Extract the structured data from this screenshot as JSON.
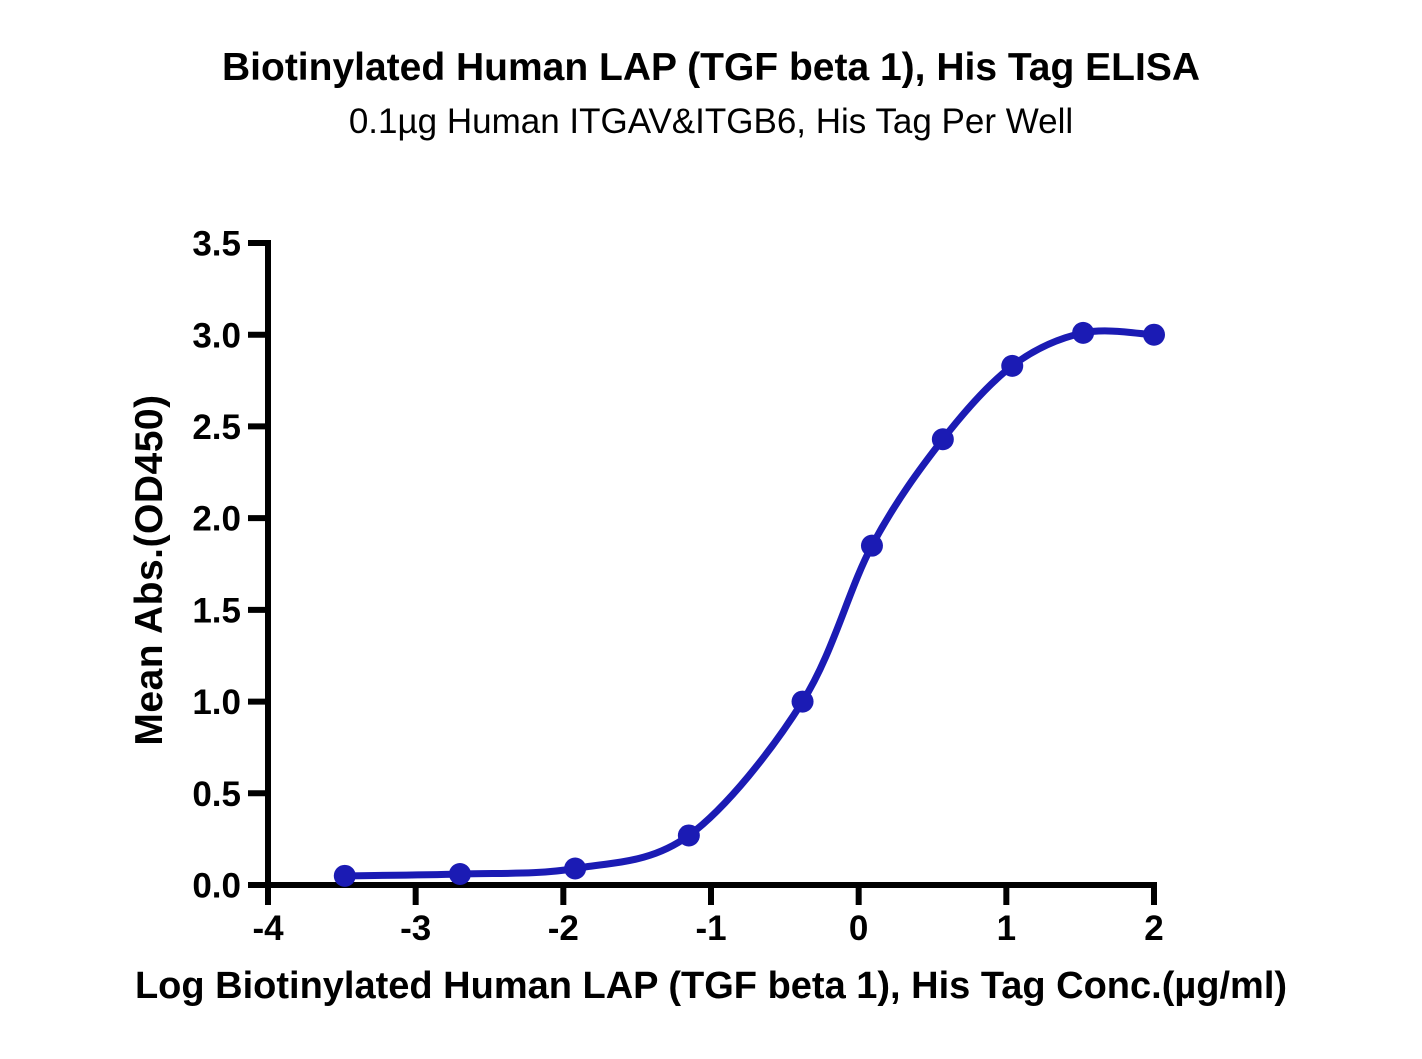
{
  "page": {
    "background": "#ffffff"
  },
  "chart_data": {
    "type": "scatter",
    "title": "Biotinylated Human LAP (TGF beta 1), His Tag ELISA",
    "subtitle": "0.1µg Human ITGAV&ITGB6, His Tag Per Well",
    "xlabel": "Log Biotinylated Human LAP (TGF beta 1), His Tag Conc.(µg/ml)",
    "ylabel": "Mean Abs.(OD450)",
    "xlim": [
      -4,
      2
    ],
    "ylim": [
      0,
      3.5
    ],
    "x_ticks": [
      -4,
      -3,
      -2,
      -1,
      0,
      1,
      2
    ],
    "x_tick_labels": [
      "-4",
      "-3",
      "-2",
      "-1",
      "0",
      "1",
      "2"
    ],
    "y_ticks": [
      0,
      0.5,
      1,
      1.5,
      2,
      2.5,
      3,
      3.5
    ],
    "y_tick_labels": [
      "0.0",
      "0.5",
      "1.0",
      "1.5",
      "2.0",
      "2.5",
      "3.0",
      "3.5"
    ],
    "grid": false,
    "legend": "none",
    "axis_color": "#000000",
    "series": [
      {
        "name": "Biotinylated Human LAP (TGF beta 1), His Tag",
        "color": "#1B1BB4",
        "marker": "circle",
        "curve": "smooth sigmoidal fit",
        "points": [
          [
            -3.48,
            0.05
          ],
          [
            -2.7,
            0.06
          ],
          [
            -1.92,
            0.09
          ],
          [
            -1.15,
            0.27
          ],
          [
            -0.38,
            1.0
          ],
          [
            0.09,
            1.85
          ],
          [
            0.57,
            2.43
          ],
          [
            1.04,
            2.83
          ],
          [
            1.52,
            3.01
          ],
          [
            2.0,
            3.0
          ]
        ]
      }
    ]
  }
}
